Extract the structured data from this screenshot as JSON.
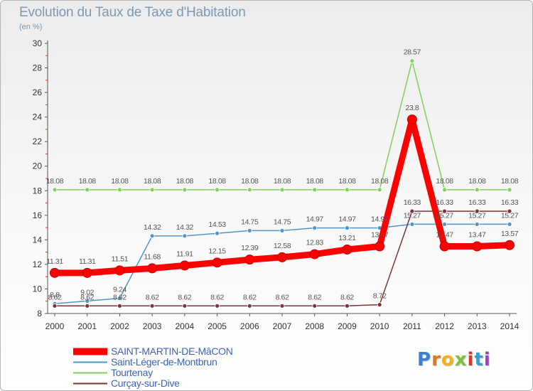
{
  "title": "Evolution du Taux de Taxe d'Habitation",
  "unit": "(en %)",
  "brand": "Proxiti",
  "chart_data": {
    "type": "line",
    "title": "Evolution du Taux de Taxe d'Habitation",
    "ylabel": "(en %)",
    "xlabel": "",
    "ylim": [
      8,
      30
    ],
    "yticks": [
      8,
      10,
      12,
      14,
      16,
      18,
      20,
      22,
      24,
      26,
      28,
      30
    ],
    "grid": false,
    "legend": "bottom-left",
    "x": [
      "2000",
      "2001",
      "2002",
      "2003",
      "2004",
      "2005",
      "2006",
      "2007",
      "2008",
      "2009",
      "2010",
      "2011",
      "2012",
      "2013",
      "2014"
    ],
    "series": [
      {
        "name": "SAINT-MARTIN-DE-MâCON",
        "color": "#ff0000",
        "values": [
          11.31,
          11.31,
          11.51,
          11.68,
          11.91,
          12.15,
          12.39,
          12.58,
          12.83,
          13.21,
          13.47,
          23.8,
          13.47,
          13.47,
          13.57
        ],
        "labels": [
          "11.31",
          "11.31",
          "11.51",
          "11.68",
          "11.91",
          "12.15",
          "12.39",
          "12.58",
          "12.83",
          "13.21",
          "13.47",
          "23.8",
          "13.47",
          "13.47",
          "13.57"
        ]
      },
      {
        "name": "Saint-Léger-de-Montbrun",
        "color": "#4f96c8",
        "values": [
          8.8,
          9.02,
          9.24,
          14.32,
          14.32,
          14.53,
          14.75,
          14.75,
          14.97,
          14.97,
          14.97,
          15.27,
          15.27,
          15.27,
          15.27
        ],
        "labels": [
          "8.8",
          "9.02",
          "9.24",
          "14.32",
          "14.32",
          "14.53",
          "14.75",
          "14.75",
          "14.97",
          "14.97",
          "14.97",
          "15.27",
          "15.27",
          "15.27",
          "15.27"
        ]
      },
      {
        "name": "Tourtenay",
        "color": "#7fd158",
        "values": [
          18.08,
          18.08,
          18.08,
          18.08,
          18.08,
          18.08,
          18.08,
          18.08,
          18.08,
          18.08,
          18.08,
          28.57,
          18.08,
          18.08,
          18.08
        ],
        "labels": [
          "18.08",
          "18.08",
          "18.08",
          "18.08",
          "18.08",
          "18.08",
          "18.08",
          "18.08",
          "18.08",
          "18.08",
          "18.08",
          "28.57",
          "18.08",
          "18.08",
          "18.08"
        ]
      },
      {
        "name": "Curçay-sur-Dive",
        "color": "#7a3535",
        "values": [
          8.62,
          8.62,
          8.62,
          8.62,
          8.62,
          8.62,
          8.62,
          8.62,
          8.62,
          8.62,
          8.72,
          16.33,
          16.33,
          16.33,
          16.33
        ],
        "labels": [
          "8.62",
          "8.62",
          "8.62",
          "8.62",
          "8.62",
          "8.62",
          "8.62",
          "8.62",
          "8.62",
          "8.62",
          "8.72",
          "16.33",
          "16.33",
          "16.33",
          "16.33"
        ]
      }
    ]
  }
}
